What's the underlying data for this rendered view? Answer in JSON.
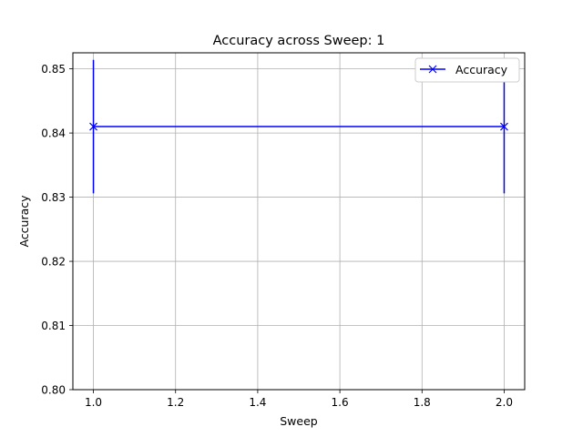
{
  "chart_data": {
    "type": "line",
    "title": "Accuracy across Sweep: 1",
    "xlabel": "Sweep",
    "ylabel": "Accuracy",
    "xlim": [
      0.95,
      2.05
    ],
    "ylim": [
      0.8,
      0.8525
    ],
    "x_ticks": [
      "1.0",
      "1.2",
      "1.4",
      "1.6",
      "1.8",
      "2.0"
    ],
    "y_ticks": [
      "0.80",
      "0.81",
      "0.82",
      "0.83",
      "0.84",
      "0.85"
    ],
    "grid": true,
    "legend_position": "top-right",
    "series": [
      {
        "name": "Accuracy",
        "color": "#0000ff",
        "marker": "x",
        "x": [
          1.0,
          2.0
        ],
        "y": [
          0.841,
          0.841
        ],
        "yerr": [
          0.0104,
          0.0104
        ]
      }
    ]
  }
}
